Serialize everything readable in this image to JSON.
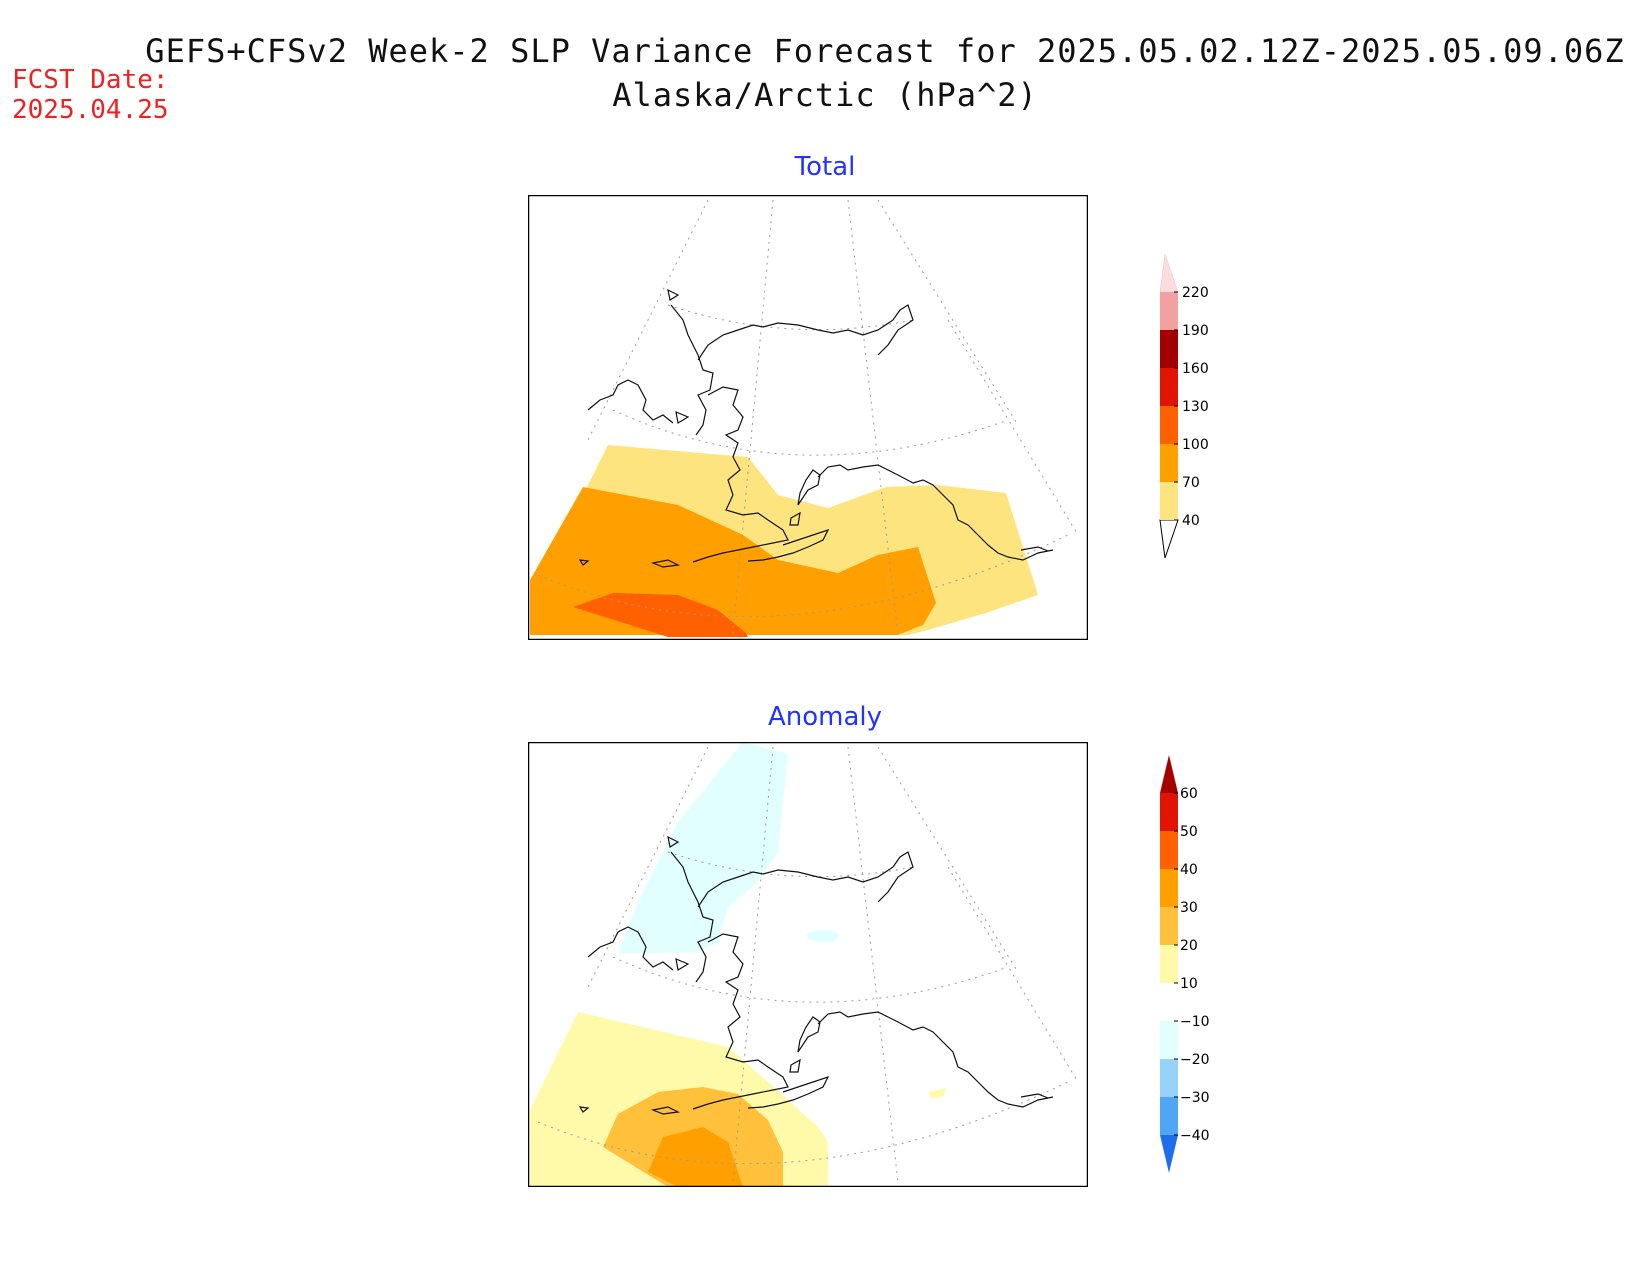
{
  "title": {
    "line1": "GEFS+CFSv2 Week-2 SLP Variance Forecast for 2025.05.02.12Z-2025.05.09.06Z",
    "line2": "Alaska/Arctic (hPa^2)"
  },
  "fcst": {
    "label": "FCST Date:",
    "date": "2025.04.25"
  },
  "panels": {
    "total": {
      "title": "Total",
      "colorbar": {
        "labels": [
          "40",
          "70",
          "100",
          "130",
          "160",
          "190",
          "220"
        ],
        "colors": [
          "#fde47f",
          "#ffa000",
          "#ff6000",
          "#e11400",
          "#a50000",
          "#f2a0a0",
          "#ffdcdc"
        ]
      }
    },
    "anomaly": {
      "title": "Anomaly",
      "colorbar": {
        "labels": [
          "60",
          "50",
          "40",
          "30",
          "20",
          "10",
          "-10",
          "-20",
          "-30",
          "-40"
        ],
        "colors": {
          "above_60": "#a50000",
          "50_60": "#e11400",
          "40_50": "#ff6000",
          "30_40": "#ffa000",
          "20_30": "#ffc03c",
          "10_20": "#fffaaa",
          "neutral": "#ffffff",
          "m10_m20": "#e1ffff",
          "m20_m30": "#96d2fa",
          "m30_m40": "#50a5f5",
          "below_m40": "#1e6eeb"
        }
      }
    }
  }
}
